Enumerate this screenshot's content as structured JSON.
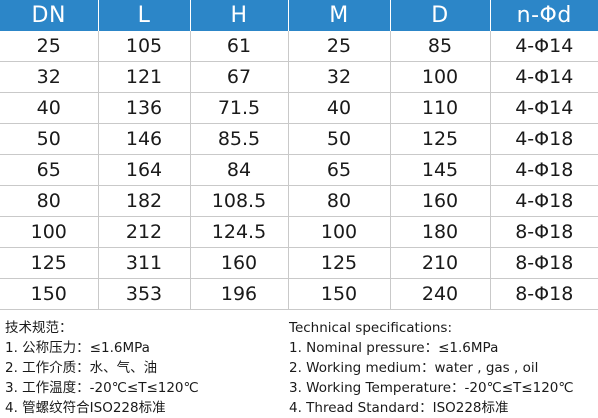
{
  "table": {
    "headers": [
      "DN",
      "L",
      "H",
      "M",
      "D",
      "n-Φd"
    ],
    "rows": [
      [
        "25",
        "105",
        "61",
        "25",
        "85",
        "4-Φ14"
      ],
      [
        "32",
        "121",
        "67",
        "32",
        "100",
        "4-Φ14"
      ],
      [
        "40",
        "136",
        "71.5",
        "40",
        "110",
        "4-Φ14"
      ],
      [
        "50",
        "146",
        "85.5",
        "50",
        "125",
        "4-Φ18"
      ],
      [
        "65",
        "164",
        "84",
        "65",
        "145",
        "4-Φ18"
      ],
      [
        "80",
        "182",
        "108.5",
        "80",
        "160",
        "4-Φ18"
      ],
      [
        "100",
        "212",
        "124.5",
        "100",
        "180",
        "8-Φ18"
      ],
      [
        "125",
        "311",
        "160",
        "125",
        "210",
        "8-Φ18"
      ],
      [
        "150",
        "353",
        "196",
        "150",
        "240",
        "8-Φ18"
      ]
    ]
  },
  "notes_cn": {
    "title": "技术规范：",
    "items": [
      "1. 公称压力：≤1.6MPa",
      "2. 工作介质：水、气、油",
      "3. 工作温度：-20℃≤T≤120℃",
      "4. 管螺纹符合ISO228标准"
    ]
  },
  "notes_en": {
    "title": "Technical specifications:",
    "items": [
      "1. Nominal pressure：≤1.6MPa",
      "2. Working medium：water , gas , oil",
      "3. Working Temperature：-20℃≤T≤120℃",
      "4. Thread Standard：ISO228标准"
    ]
  },
  "colors": {
    "header_bg": "#2c86c8",
    "header_text": "#ffffff",
    "grid_line": "#c9c9c9"
  }
}
